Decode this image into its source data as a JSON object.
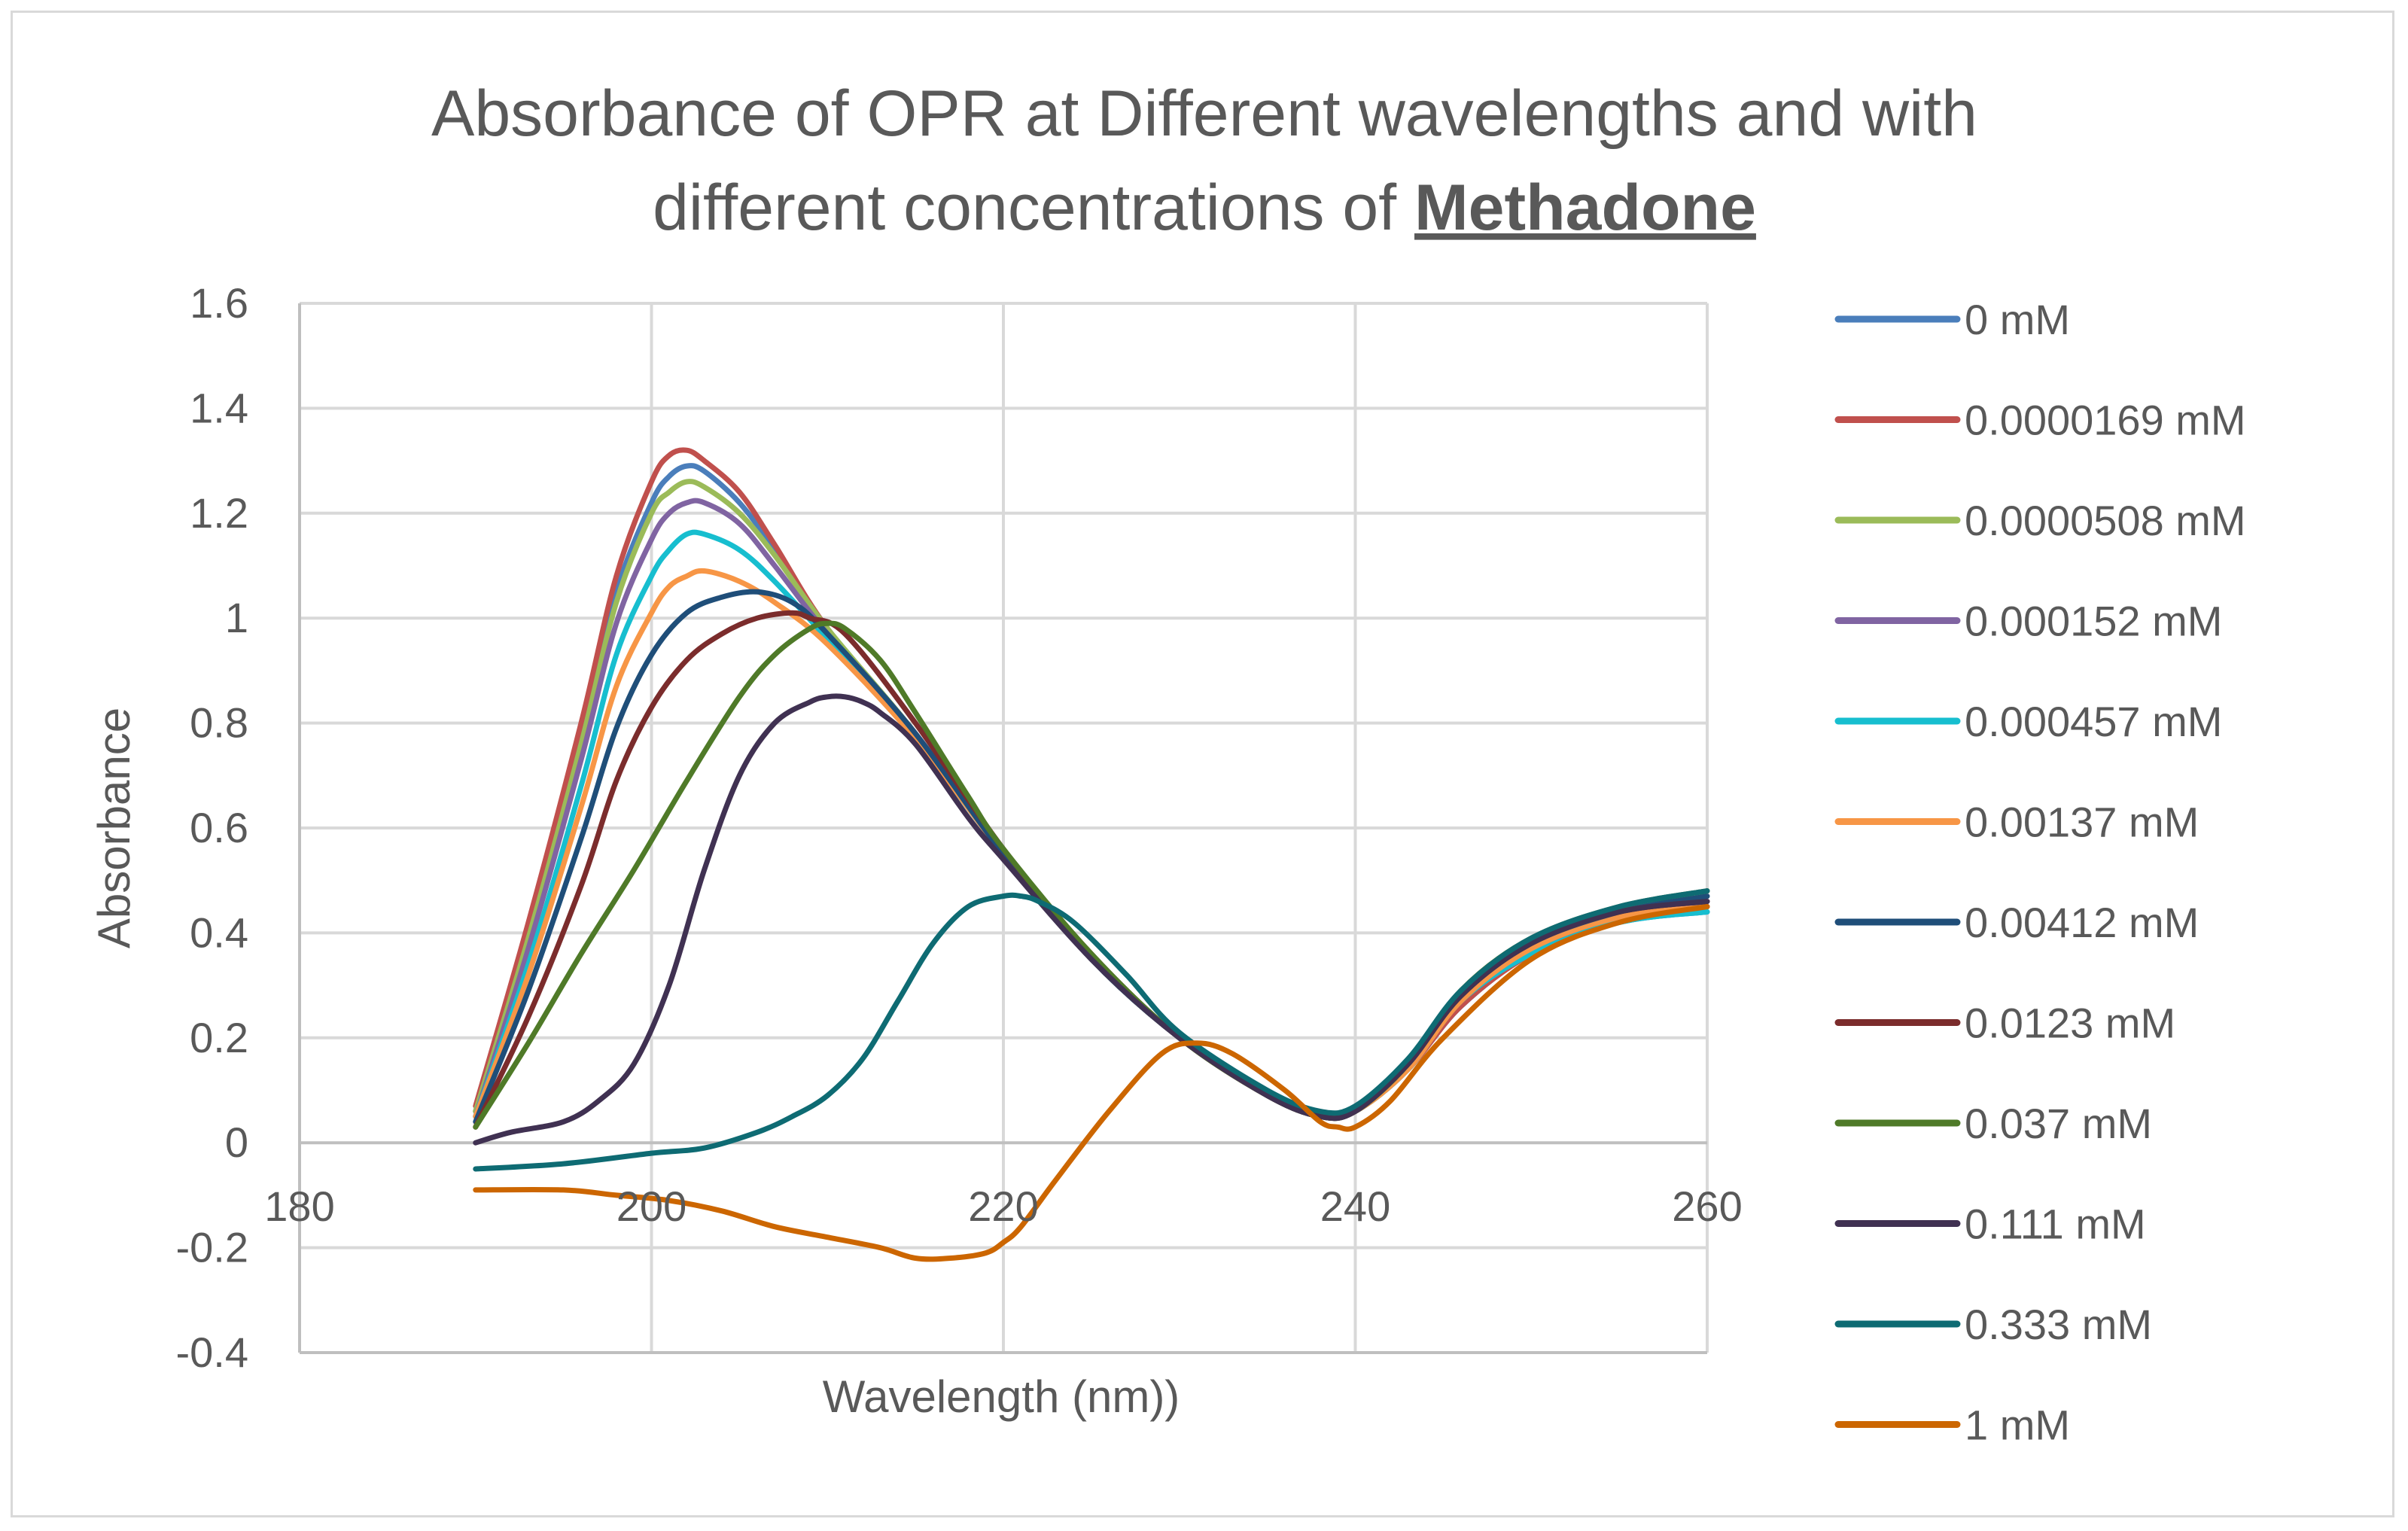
{
  "chart_data": {
    "type": "line",
    "title": "Absorbance of OPR at Different wavelengths and with different concentrations of",
    "title_emphasis": "Methadone",
    "xlabel": "Wavelength  (nm))",
    "ylabel": "Absorbance",
    "xlim": [
      180,
      260
    ],
    "ylim": [
      -0.4,
      1.6
    ],
    "x_ticks": [
      180,
      200,
      220,
      240,
      260
    ],
    "y_ticks": [
      -0.4,
      -0.2,
      0,
      0.2,
      0.4,
      0.6,
      0.8,
      1,
      1.2,
      1.4,
      1.6
    ],
    "y_tick_labels": [
      "-0.4",
      "-0.2",
      "0",
      "0.2",
      "0.4",
      "0.6",
      "0.8",
      "1",
      "1.2",
      "1.4",
      "1.6"
    ],
    "grid": true,
    "legend_position": "right",
    "series": [
      {
        "name": "0 mM",
        "color": "#4a7ebb",
        "x": [
          190,
          193,
          196,
          198,
          200,
          201,
          202,
          203,
          205,
          207,
          210,
          215,
          220,
          225,
          230,
          235,
          238,
          240,
          243,
          246,
          250,
          255,
          260
        ],
        "y": [
          0.06,
          0.4,
          0.78,
          1.05,
          1.22,
          1.27,
          1.29,
          1.28,
          1.22,
          1.13,
          0.98,
          0.78,
          0.55,
          0.35,
          0.2,
          0.09,
          0.05,
          0.06,
          0.14,
          0.26,
          0.36,
          0.42,
          0.44
        ]
      },
      {
        "name": "0.0000169 mM",
        "color": "#c0504d",
        "x": [
          190,
          193,
          196,
          198,
          200,
          201,
          202,
          203,
          205,
          207,
          210,
          215,
          220,
          225,
          230,
          235,
          238,
          240,
          243,
          246,
          250,
          255,
          260
        ],
        "y": [
          0.07,
          0.42,
          0.8,
          1.08,
          1.26,
          1.31,
          1.32,
          1.3,
          1.24,
          1.14,
          0.98,
          0.78,
          0.55,
          0.35,
          0.2,
          0.09,
          0.05,
          0.06,
          0.14,
          0.26,
          0.36,
          0.43,
          0.45
        ]
      },
      {
        "name": "0.0000508 mM",
        "color": "#9bbb59",
        "x": [
          190,
          193,
          196,
          198,
          200,
          201,
          202,
          203,
          205,
          207,
          210,
          215,
          220,
          225,
          230,
          235,
          238,
          240,
          243,
          246,
          250,
          255,
          260
        ],
        "y": [
          0.06,
          0.39,
          0.76,
          1.03,
          1.2,
          1.24,
          1.26,
          1.25,
          1.2,
          1.12,
          0.98,
          0.78,
          0.55,
          0.35,
          0.2,
          0.09,
          0.05,
          0.06,
          0.14,
          0.27,
          0.37,
          0.43,
          0.45
        ]
      },
      {
        "name": "0.000152 mM",
        "color": "#8064a2",
        "x": [
          190,
          193,
          196,
          198,
          200,
          201,
          202,
          203,
          205,
          207,
          210,
          215,
          220,
          225,
          230,
          235,
          238,
          240,
          243,
          246,
          250,
          255,
          260
        ],
        "y": [
          0.05,
          0.37,
          0.73,
          0.99,
          1.15,
          1.2,
          1.22,
          1.22,
          1.18,
          1.1,
          0.97,
          0.78,
          0.55,
          0.35,
          0.2,
          0.09,
          0.05,
          0.06,
          0.14,
          0.27,
          0.37,
          0.43,
          0.45
        ]
      },
      {
        "name": "0.000457 mM",
        "color": "#17becf",
        "x": [
          190,
          193,
          196,
          198,
          200,
          201,
          202,
          203,
          205,
          207,
          210,
          215,
          220,
          225,
          230,
          235,
          238,
          240,
          243,
          246,
          250,
          255,
          260
        ],
        "y": [
          0.05,
          0.34,
          0.68,
          0.93,
          1.08,
          1.13,
          1.16,
          1.16,
          1.13,
          1.07,
          0.96,
          0.77,
          0.55,
          0.35,
          0.2,
          0.09,
          0.05,
          0.06,
          0.14,
          0.27,
          0.36,
          0.42,
          0.44
        ]
      },
      {
        "name": "0.00137 mM",
        "color": "#f79646",
        "x": [
          190,
          193,
          196,
          198,
          200,
          201,
          202,
          203,
          205,
          207,
          210,
          215,
          220,
          225,
          230,
          235,
          238,
          240,
          243,
          246,
          250,
          255,
          260
        ],
        "y": [
          0.05,
          0.32,
          0.64,
          0.87,
          1.01,
          1.06,
          1.08,
          1.09,
          1.07,
          1.03,
          0.95,
          0.77,
          0.55,
          0.35,
          0.2,
          0.09,
          0.05,
          0.06,
          0.14,
          0.27,
          0.37,
          0.43,
          0.45
        ]
      },
      {
        "name": "0.00412 mM",
        "color": "#1f4e79",
        "x": [
          190,
          193,
          196,
          198,
          200,
          202,
          204,
          206,
          208,
          210,
          215,
          220,
          225,
          230,
          235,
          238,
          240,
          243,
          246,
          250,
          255,
          260
        ],
        "y": [
          0.04,
          0.29,
          0.58,
          0.79,
          0.93,
          1.01,
          1.04,
          1.05,
          1.03,
          0.97,
          0.78,
          0.55,
          0.35,
          0.2,
          0.09,
          0.05,
          0.06,
          0.15,
          0.28,
          0.38,
          0.44,
          0.47
        ]
      },
      {
        "name": "0.0123 mM",
        "color": "#7b2c2c",
        "x": [
          190,
          193,
          196,
          198,
          200,
          202,
          204,
          206,
          208,
          209,
          211,
          215,
          220,
          225,
          230,
          235,
          238,
          240,
          243,
          246,
          250,
          255,
          260
        ],
        "y": [
          0.03,
          0.24,
          0.49,
          0.69,
          0.83,
          0.92,
          0.97,
          1.0,
          1.01,
          1.0,
          0.97,
          0.8,
          0.56,
          0.36,
          0.2,
          0.09,
          0.05,
          0.06,
          0.15,
          0.28,
          0.38,
          0.44,
          0.46
        ]
      },
      {
        "name": "0.037 mM",
        "color": "#4f7a28",
        "x": [
          190,
          193,
          196,
          199,
          202,
          205,
          207,
          209,
          210,
          211,
          213,
          215,
          218,
          220,
          225,
          230,
          235,
          238,
          240,
          243,
          246,
          250,
          255,
          260
        ],
        "y": [
          0.03,
          0.19,
          0.36,
          0.52,
          0.69,
          0.85,
          0.93,
          0.98,
          0.99,
          0.98,
          0.92,
          0.82,
          0.66,
          0.56,
          0.36,
          0.2,
          0.09,
          0.05,
          0.06,
          0.15,
          0.29,
          0.39,
          0.45,
          0.48
        ]
      },
      {
        "name": "0.111 mM",
        "color": "#403152",
        "x": [
          190,
          192,
          195,
          197,
          199,
          201,
          203,
          205,
          207,
          209,
          210,
          211,
          212,
          213,
          215,
          218,
          220,
          225,
          230,
          235,
          238,
          240,
          243,
          246,
          250,
          255,
          260
        ],
        "y": [
          0.0,
          0.02,
          0.04,
          0.08,
          0.15,
          0.3,
          0.52,
          0.7,
          0.8,
          0.84,
          0.85,
          0.85,
          0.84,
          0.82,
          0.76,
          0.62,
          0.54,
          0.35,
          0.2,
          0.09,
          0.05,
          0.06,
          0.15,
          0.28,
          0.38,
          0.44,
          0.46
        ]
      },
      {
        "name": "0.333 mM",
        "color": "#0e6b73",
        "x": [
          190,
          195,
          200,
          203,
          206,
          208,
          210,
          212,
          214,
          216,
          218,
          220,
          221,
          222,
          224,
          227,
          230,
          235,
          238,
          240,
          243,
          246,
          250,
          255,
          260
        ],
        "y": [
          -0.05,
          -0.04,
          -0.02,
          -0.01,
          0.02,
          0.05,
          0.09,
          0.16,
          0.27,
          0.38,
          0.45,
          0.47,
          0.47,
          0.46,
          0.42,
          0.32,
          0.21,
          0.1,
          0.06,
          0.07,
          0.16,
          0.29,
          0.39,
          0.45,
          0.48
        ]
      },
      {
        "name": "1 mM",
        "color": "#cc6600",
        "x": [
          190,
          195,
          198,
          201,
          204,
          207,
          210,
          213,
          215,
          217,
          219,
          220,
          221,
          223,
          226,
          229,
          231,
          233,
          236,
          238,
          239,
          240,
          242,
          245,
          250,
          255,
          260
        ],
        "y": [
          -0.09,
          -0.09,
          -0.1,
          -0.11,
          -0.13,
          -0.16,
          -0.18,
          -0.2,
          -0.22,
          -0.22,
          -0.21,
          -0.19,
          -0.16,
          -0.07,
          0.06,
          0.17,
          0.19,
          0.17,
          0.1,
          0.04,
          0.03,
          0.03,
          0.08,
          0.2,
          0.35,
          0.42,
          0.45
        ]
      }
    ]
  }
}
